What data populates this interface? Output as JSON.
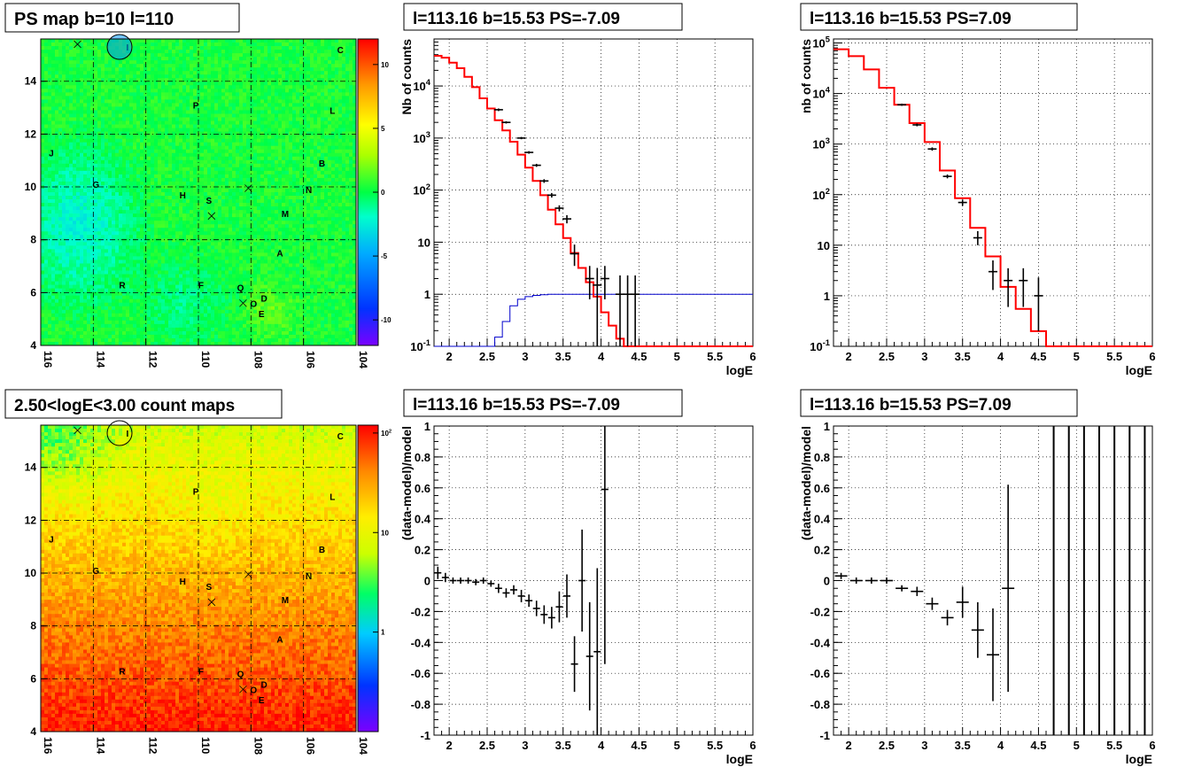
{
  "titles": {
    "ps_map": "PS map b=10 l=110",
    "spec_neg": "l=113.16 b=15.53 PS=-7.09",
    "spec_pos": "l=113.16 b=15.53 PS=7.09",
    "count_map": "2.50<logE<3.00 count maps",
    "resid_neg": "l=113.16 b=15.53 PS=-7.09",
    "resid_pos": "l=113.16 b=15.53 PS=7.09"
  },
  "colors": {
    "model": "#ff0000",
    "background_model": "#0000cc",
    "data": "#000000"
  },
  "source_labels": [
    "I",
    "C",
    "P",
    "L",
    "J",
    "B",
    "G",
    "N",
    "H",
    "S",
    "M",
    "A",
    "R",
    "F",
    "Q",
    "D",
    "O",
    "E"
  ],
  "chart_data": [
    {
      "id": "ps_map",
      "type": "heatmap",
      "title": "PS map b=10 l=110",
      "xlim": [
        116,
        104
      ],
      "ylim": [
        4,
        15.6
      ],
      "x_ticks": [
        116,
        114,
        112,
        110,
        108,
        106,
        104
      ],
      "y_ticks": [
        4,
        6,
        8,
        10,
        12,
        14
      ],
      "colorbar": {
        "range": [
          -12,
          12
        ],
        "ticks": [
          -10,
          -5,
          0,
          5,
          10
        ]
      },
      "sources": [
        {
          "label": "I",
          "l": 112.7,
          "b": 15.3
        },
        {
          "label": "C",
          "l": 104.6,
          "b": 15.2
        },
        {
          "label": "P",
          "l": 110.1,
          "b": 13.1
        },
        {
          "label": "L",
          "l": 104.9,
          "b": 12.9
        },
        {
          "label": "J",
          "l": 115.6,
          "b": 11.3
        },
        {
          "label": "B",
          "l": 105.3,
          "b": 10.9
        },
        {
          "label": "G",
          "l": 113.9,
          "b": 10.1
        },
        {
          "label": "N",
          "l": 105.8,
          "b": 9.9
        },
        {
          "label": "H",
          "l": 110.6,
          "b": 9.7
        },
        {
          "label": "S",
          "l": 109.6,
          "b": 9.5
        },
        {
          "label": "M",
          "l": 106.7,
          "b": 9.0
        },
        {
          "label": "A",
          "l": 106.9,
          "b": 7.5
        },
        {
          "label": "R",
          "l": 112.9,
          "b": 6.3
        },
        {
          "label": "F",
          "l": 109.9,
          "b": 6.3
        },
        {
          "label": "Q",
          "l": 108.4,
          "b": 6.2
        },
        {
          "label": "D",
          "l": 107.5,
          "b": 5.8
        },
        {
          "label": "O",
          "l": 107.9,
          "b": 5.6
        },
        {
          "label": "E",
          "l": 107.6,
          "b": 5.2
        }
      ],
      "crosses": [
        {
          "l": 114.6,
          "b": 15.4
        },
        {
          "l": 108.1,
          "b": 9.95
        },
        {
          "l": 109.5,
          "b": 8.9
        },
        {
          "l": 108.3,
          "b": 5.6
        }
      ],
      "circle": {
        "l": 113.0,
        "b": 15.3
      }
    },
    {
      "id": "spec_neg",
      "type": "line",
      "title": "l=113.16 b=15.53 PS=-7.09",
      "xlabel": "logE",
      "ylabel": "Nb of counts",
      "xlim": [
        1.8,
        6
      ],
      "ylim": [
        0.1,
        80000
      ],
      "yscale": "log",
      "x_ticks": [
        2,
        2.5,
        3,
        3.5,
        4,
        4.5,
        5,
        5.5,
        6
      ],
      "y_ticks": [
        "10^{-1}",
        "1",
        "10",
        "10^{2}",
        "10^{3}",
        "10^{4}"
      ],
      "bin_edges": [
        1.8,
        1.9,
        2.0,
        2.1,
        2.2,
        2.3,
        2.4,
        2.5,
        2.6,
        2.7,
        2.8,
        2.9,
        3.0,
        3.1,
        3.2,
        3.3,
        3.4,
        3.5,
        3.6,
        3.7,
        3.8,
        3.9,
        4.0,
        4.1,
        4.2,
        4.3,
        4.4,
        4.5,
        6.0
      ],
      "model_red": [
        38000,
        35000,
        28000,
        22000,
        15000,
        9500,
        5800,
        3700,
        2200,
        1400,
        850,
        480,
        270,
        150,
        80,
        42,
        22,
        12,
        6.2,
        3.2,
        1.7,
        0.9,
        0.45,
        0.25,
        0.14,
        0.1,
        0.1,
        0.1
      ],
      "model_blue": [
        0.1,
        0.1,
        0.1,
        0.1,
        0.1,
        0.1,
        0.1,
        0.1,
        0.15,
        0.3,
        0.6,
        0.8,
        0.9,
        0.95,
        0.98,
        1.0,
        1.0,
        1.0,
        1.0,
        1.0,
        1.0,
        1.0,
        1.0,
        1.0,
        1.0,
        1.0,
        1.0,
        1.0
      ],
      "data_points": [
        {
          "x": 2.65,
          "y": 3500,
          "lo": 3300,
          "hi": 3700
        },
        {
          "x": 2.75,
          "y": 2000,
          "lo": 1900,
          "hi": 2100
        },
        {
          "x": 2.95,
          "y": 1000,
          "lo": 950,
          "hi": 1050
        },
        {
          "x": 3.05,
          "y": 530,
          "lo": 500,
          "hi": 560
        },
        {
          "x": 3.15,
          "y": 300,
          "lo": 280,
          "hi": 320
        },
        {
          "x": 3.25,
          "y": 150,
          "lo": 138,
          "hi": 162
        },
        {
          "x": 3.35,
          "y": 80,
          "lo": 72,
          "hi": 88
        },
        {
          "x": 3.45,
          "y": 45,
          "lo": 39,
          "hi": 51
        },
        {
          "x": 3.55,
          "y": 28,
          "lo": 23,
          "hi": 33
        },
        {
          "x": 3.65,
          "y": 6,
          "lo": 3.5,
          "hi": 9
        },
        {
          "x": 3.85,
          "y": 2,
          "lo": 0.8,
          "hi": 3.5
        },
        {
          "x": 3.95,
          "y": 1.5,
          "lo": 0.1,
          "hi": 3.2
        },
        {
          "x": 4.05,
          "y": 2,
          "lo": 0.8,
          "hi": 3.5
        },
        {
          "x": 4.25,
          "y": 1,
          "lo": 0.1,
          "hi": 2.3
        },
        {
          "x": 4.35,
          "y": 1,
          "lo": 0.1,
          "hi": 2.3
        },
        {
          "x": 4.45,
          "y": 1,
          "lo": 0.1,
          "hi": 2.3
        }
      ]
    },
    {
      "id": "spec_pos",
      "type": "line",
      "title": "l=113.16 b=15.53 PS=7.09",
      "xlabel": "logE",
      "ylabel": "nb of counts",
      "xlim": [
        1.8,
        6
      ],
      "ylim": [
        0.1,
        120000
      ],
      "yscale": "log",
      "x_ticks": [
        2,
        2.5,
        3,
        3.5,
        4,
        4.5,
        5,
        5.5,
        6
      ],
      "y_ticks": [
        "10^{-1}",
        "1",
        "10",
        "10^{2}",
        "10^{3}",
        "10^{4}",
        "10^{5}"
      ],
      "bin_edges": [
        1.8,
        2.0,
        2.2,
        2.4,
        2.6,
        2.8,
        3.0,
        3.2,
        3.4,
        3.6,
        3.8,
        4.0,
        4.2,
        4.4,
        4.6,
        4.8,
        6.0
      ],
      "model_red": [
        75000,
        55000,
        30000,
        13000,
        6000,
        2600,
        1100,
        300,
        85,
        22,
        6,
        1.5,
        0.55,
        0.2,
        0.1,
        0.1
      ],
      "data_points": [
        {
          "x": 2.7,
          "y": 6000,
          "lo": 5700,
          "hi": 6300
        },
        {
          "x": 2.9,
          "y": 2400,
          "lo": 2250,
          "hi": 2550
        },
        {
          "x": 3.1,
          "y": 800,
          "lo": 740,
          "hi": 860
        },
        {
          "x": 3.3,
          "y": 230,
          "lo": 210,
          "hi": 250
        },
        {
          "x": 3.5,
          "y": 70,
          "lo": 60,
          "hi": 80
        },
        {
          "x": 3.7,
          "y": 14,
          "lo": 10,
          "hi": 19
        },
        {
          "x": 3.9,
          "y": 3,
          "lo": 1.3,
          "hi": 5
        },
        {
          "x": 4.1,
          "y": 2,
          "lo": 0.6,
          "hi": 3.5
        },
        {
          "x": 4.3,
          "y": 2,
          "lo": 0.6,
          "hi": 3.5
        },
        {
          "x": 4.5,
          "y": 1,
          "lo": 0.2,
          "hi": 2.3
        }
      ]
    },
    {
      "id": "count_map",
      "type": "heatmap",
      "title": "2.50<logE<3.00 count maps",
      "xlim": [
        116,
        104
      ],
      "ylim": [
        4,
        15.6
      ],
      "x_ticks": [
        116,
        114,
        112,
        110,
        108,
        106,
        104
      ],
      "y_ticks": [
        4,
        6,
        8,
        10,
        12,
        14
      ],
      "colorbar": {
        "scale": "log",
        "range": [
          0.1,
          120
        ],
        "ticks": [
          "1",
          "10",
          "10^{2}"
        ]
      }
    },
    {
      "id": "resid_neg",
      "type": "scatter",
      "title": "l=113.16 b=15.53 PS=-7.09",
      "xlabel": "logE",
      "ylabel": "(data-model)/model",
      "xlim": [
        1.8,
        6
      ],
      "ylim": [
        -1,
        1
      ],
      "x_ticks": [
        2,
        2.5,
        3,
        3.5,
        4,
        4.5,
        5,
        5.5,
        6
      ],
      "y_ticks": [
        -1,
        -0.8,
        -0.6,
        -0.4,
        -0.2,
        0,
        0.2,
        0.4,
        0.6,
        0.8,
        1
      ],
      "data_points": [
        {
          "x": 1.85,
          "y": 0.05,
          "e": 0.04
        },
        {
          "x": 1.95,
          "y": 0.02,
          "e": 0.03
        },
        {
          "x": 2.05,
          "y": 0.0,
          "e": 0.02
        },
        {
          "x": 2.15,
          "y": 0.0,
          "e": 0.02
        },
        {
          "x": 2.25,
          "y": 0.0,
          "e": 0.02
        },
        {
          "x": 2.35,
          "y": -0.01,
          "e": 0.02
        },
        {
          "x": 2.45,
          "y": 0.0,
          "e": 0.02
        },
        {
          "x": 2.55,
          "y": -0.02,
          "e": 0.02
        },
        {
          "x": 2.65,
          "y": -0.05,
          "e": 0.03
        },
        {
          "x": 2.75,
          "y": -0.08,
          "e": 0.03
        },
        {
          "x": 2.85,
          "y": -0.06,
          "e": 0.03
        },
        {
          "x": 2.95,
          "y": -0.1,
          "e": 0.04
        },
        {
          "x": 3.05,
          "y": -0.13,
          "e": 0.04
        },
        {
          "x": 3.15,
          "y": -0.18,
          "e": 0.05
        },
        {
          "x": 3.25,
          "y": -0.22,
          "e": 0.06
        },
        {
          "x": 3.35,
          "y": -0.24,
          "e": 0.07
        },
        {
          "x": 3.45,
          "y": -0.17,
          "e": 0.1
        },
        {
          "x": 3.55,
          "y": -0.1,
          "e": 0.14
        },
        {
          "x": 3.65,
          "y": -0.54,
          "e": 0.18
        },
        {
          "x": 3.75,
          "y": 0.0,
          "e": 0.33
        },
        {
          "x": 3.85,
          "y": -0.49,
          "e": 0.35
        },
        {
          "x": 3.95,
          "y": -0.46,
          "e": 0.54
        },
        {
          "x": 4.05,
          "y": 0.59,
          "e": 1.13
        }
      ]
    },
    {
      "id": "resid_pos",
      "type": "scatter",
      "title": "l=113.16 b=15.53 PS=7.09",
      "xlabel": "logE",
      "ylabel": "(data-model)/model",
      "xlim": [
        1.8,
        6
      ],
      "ylim": [
        -1,
        1
      ],
      "x_ticks": [
        2,
        2.5,
        3,
        3.5,
        4,
        4.5,
        5,
        5.5,
        6
      ],
      "y_ticks": [
        -1,
        -0.8,
        -0.6,
        -0.4,
        -0.2,
        0,
        0.2,
        0.4,
        0.6,
        0.8,
        1
      ],
      "data_points": [
        {
          "x": 1.9,
          "y": 0.03,
          "e": 0.02
        },
        {
          "x": 2.1,
          "y": 0.0,
          "e": 0.02
        },
        {
          "x": 2.3,
          "y": 0.0,
          "e": 0.02
        },
        {
          "x": 2.5,
          "y": 0.0,
          "e": 0.02
        },
        {
          "x": 2.7,
          "y": -0.05,
          "e": 0.02
        },
        {
          "x": 2.9,
          "y": -0.07,
          "e": 0.03
        },
        {
          "x": 3.1,
          "y": -0.15,
          "e": 0.04
        },
        {
          "x": 3.3,
          "y": -0.24,
          "e": 0.05
        },
        {
          "x": 3.5,
          "y": -0.14,
          "e": 0.1
        },
        {
          "x": 3.7,
          "y": -0.32,
          "e": 0.18
        },
        {
          "x": 3.9,
          "y": -0.48,
          "e": 0.3
        },
        {
          "x": 4.1,
          "y": -0.05,
          "e": 0.67
        }
      ],
      "full_range_bars_x": [
        4.7,
        4.9,
        5.1,
        5.3,
        5.5,
        5.7,
        5.9
      ]
    }
  ]
}
